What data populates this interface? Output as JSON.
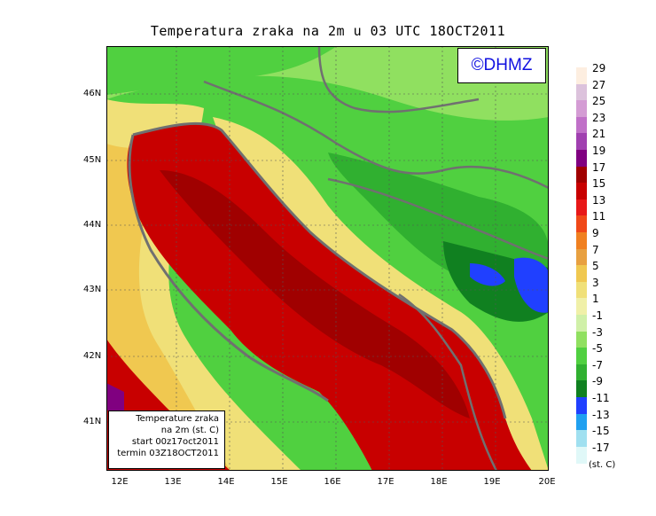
{
  "title": "Temperatura zraka na 2m u 03 UTC 18OCT2011",
  "logo": "©DHMZ",
  "legend_box": {
    "line1": "Temperature zraka",
    "line2": "na 2m (st. C)",
    "line3": "start 00z17oct2011",
    "line4": "termin 03Z18OCT2011"
  },
  "lat_labels": [
    "46N",
    "45N",
    "44N",
    "43N",
    "42N",
    "41N"
  ],
  "lon_labels": [
    "12E",
    "13E",
    "14E",
    "15E",
    "16E",
    "17E",
    "18E",
    "19E",
    "20E"
  ],
  "colorbar": {
    "ticks": [
      "29",
      "27",
      "25",
      "23",
      "21",
      "19",
      "17",
      "15",
      "13",
      "11",
      "9",
      "7",
      "5",
      "3",
      "1",
      "-1",
      "-3",
      "-5",
      "-7",
      "-9",
      "-11",
      "-13",
      "-15",
      "-17"
    ],
    "unit": "(st. C)",
    "colors": [
      "#fdeee0",
      "#dcc2dc",
      "#d49cd4",
      "#c070c8",
      "#a040b0",
      "#800080",
      "#a00000",
      "#c80000",
      "#e81818",
      "#f04818",
      "#f08020",
      "#e8a040",
      "#f0c850",
      "#f0e078",
      "#f0f0a8",
      "#d0f0a8",
      "#90e060",
      "#50d040",
      "#30b030",
      "#108020",
      "#2040ff",
      "#20a0f0",
      "#a0e0f0",
      "#e0f8f8"
    ]
  },
  "colors": {
    "sea_warm": "#c80000",
    "sea_core": "#a00000",
    "coast_yellow": "#f0e078",
    "land_green": "#50d040",
    "land_dark": "#108020",
    "cold_blue": "#2040ff",
    "border": "#707070"
  }
}
